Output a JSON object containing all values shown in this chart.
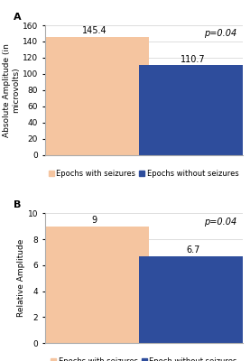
{
  "chart_A": {
    "categories": [
      "Epochs with seizures",
      "Epochs without seizures"
    ],
    "values": [
      145.4,
      110.7
    ],
    "bar_colors": [
      "#f5c5a0",
      "#2e4d9c"
    ],
    "ylabel": "Absolute Amplitude (in\nmicrovolts)",
    "ylim": [
      0,
      160
    ],
    "yticks": [
      0,
      20,
      40,
      60,
      80,
      100,
      120,
      140,
      160
    ],
    "pvalue": "p=0.04",
    "label": "A",
    "legend_labels": [
      "Epochs with seizures",
      "Epochs without seizures"
    ]
  },
  "chart_B": {
    "categories": [
      "Epochs with seizures",
      "Epoch without seizures"
    ],
    "values": [
      9,
      6.7
    ],
    "bar_colors": [
      "#f5c5a0",
      "#2e4d9c"
    ],
    "ylabel": "Relative Amplitude",
    "ylim": [
      0,
      10
    ],
    "yticks": [
      0,
      2,
      4,
      6,
      8,
      10
    ],
    "pvalue": "p=0.04",
    "label": "B",
    "legend_labels": [
      "Epochs with seizures",
      "Epoch without seizures"
    ]
  },
  "background_color": "#ffffff",
  "plot_bg_color": "#ffffff",
  "bar_width": 0.55,
  "grid_color": "#d0d0d0",
  "font_size_label": 6.5,
  "font_size_value": 7,
  "font_size_pvalue": 7,
  "font_size_legend": 6,
  "font_size_axis": 6.5,
  "font_size_panel_label": 8
}
